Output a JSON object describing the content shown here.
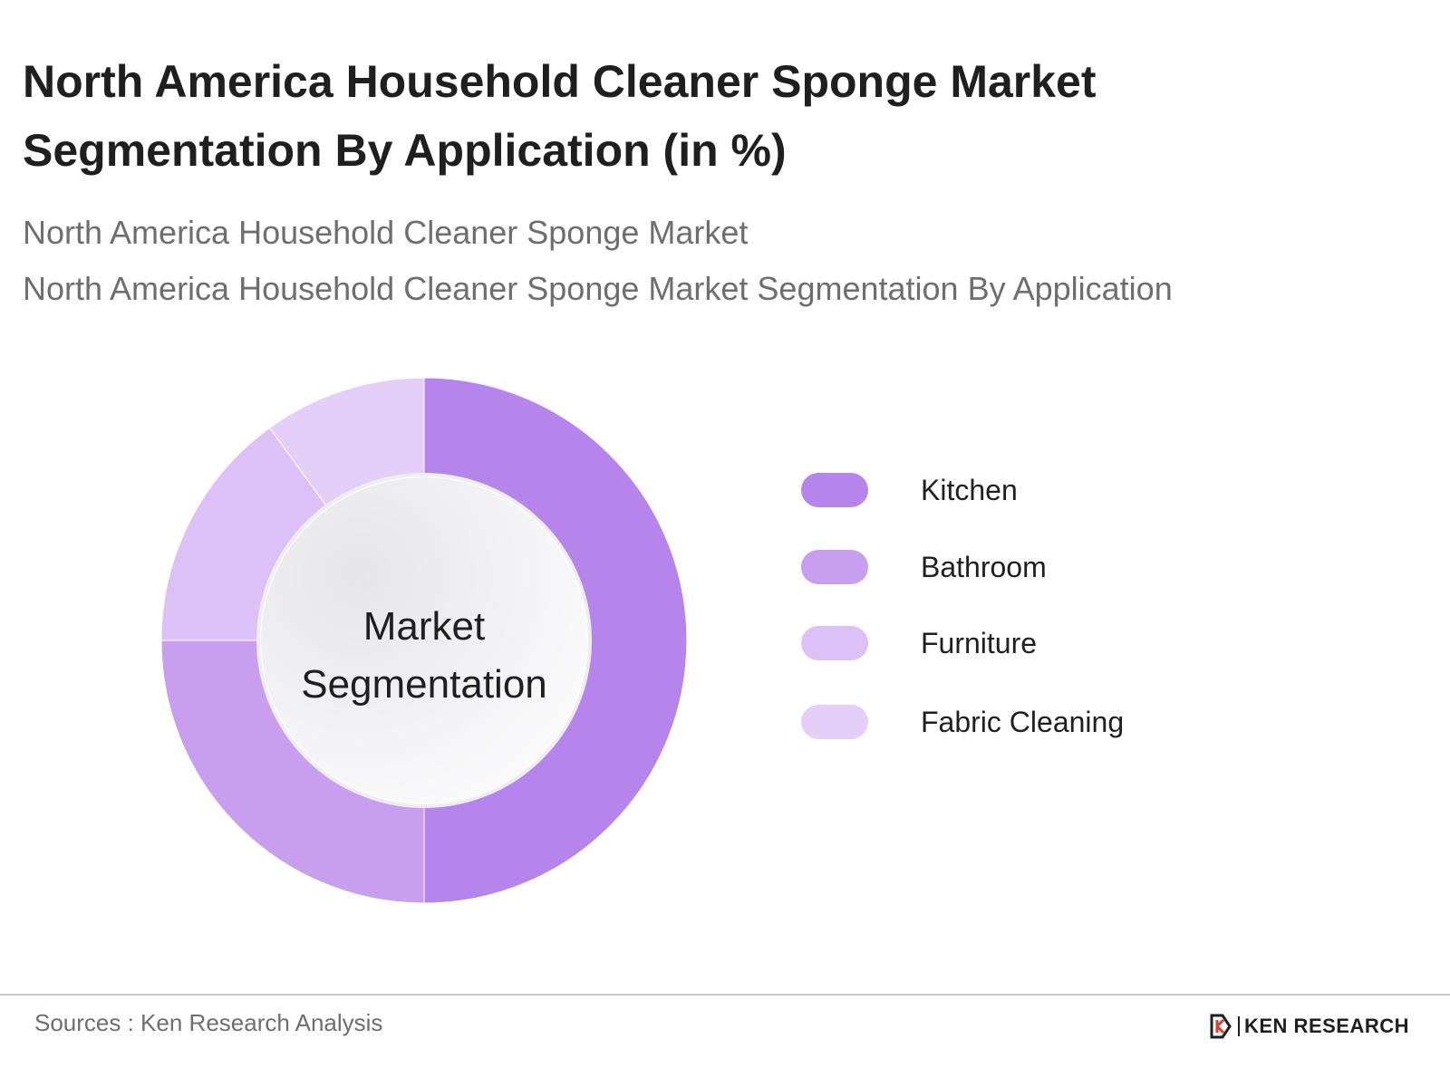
{
  "title": "North America Household Cleaner Sponge Market Segmentation By Application (in %)",
  "subtitle_1": "North America Household Cleaner Sponge Market",
  "subtitle_2": "North America Household Cleaner Sponge Market Segmentation By Application",
  "center_label_line1": "Market",
  "center_label_line2": "Segmentation",
  "source": "Sources : Ken Research Analysis",
  "brand": "KEN RESEARCH",
  "chart_data": {
    "type": "pie",
    "categories": [
      "Kitchen",
      "Bathroom",
      "Furniture",
      "Fabric Cleaning"
    ],
    "values": [
      50,
      25,
      15,
      10
    ],
    "colors": [
      "#b585ec",
      "#c79fee",
      "#dcc1f6",
      "#e4cff8"
    ],
    "legend_position": "right"
  }
}
